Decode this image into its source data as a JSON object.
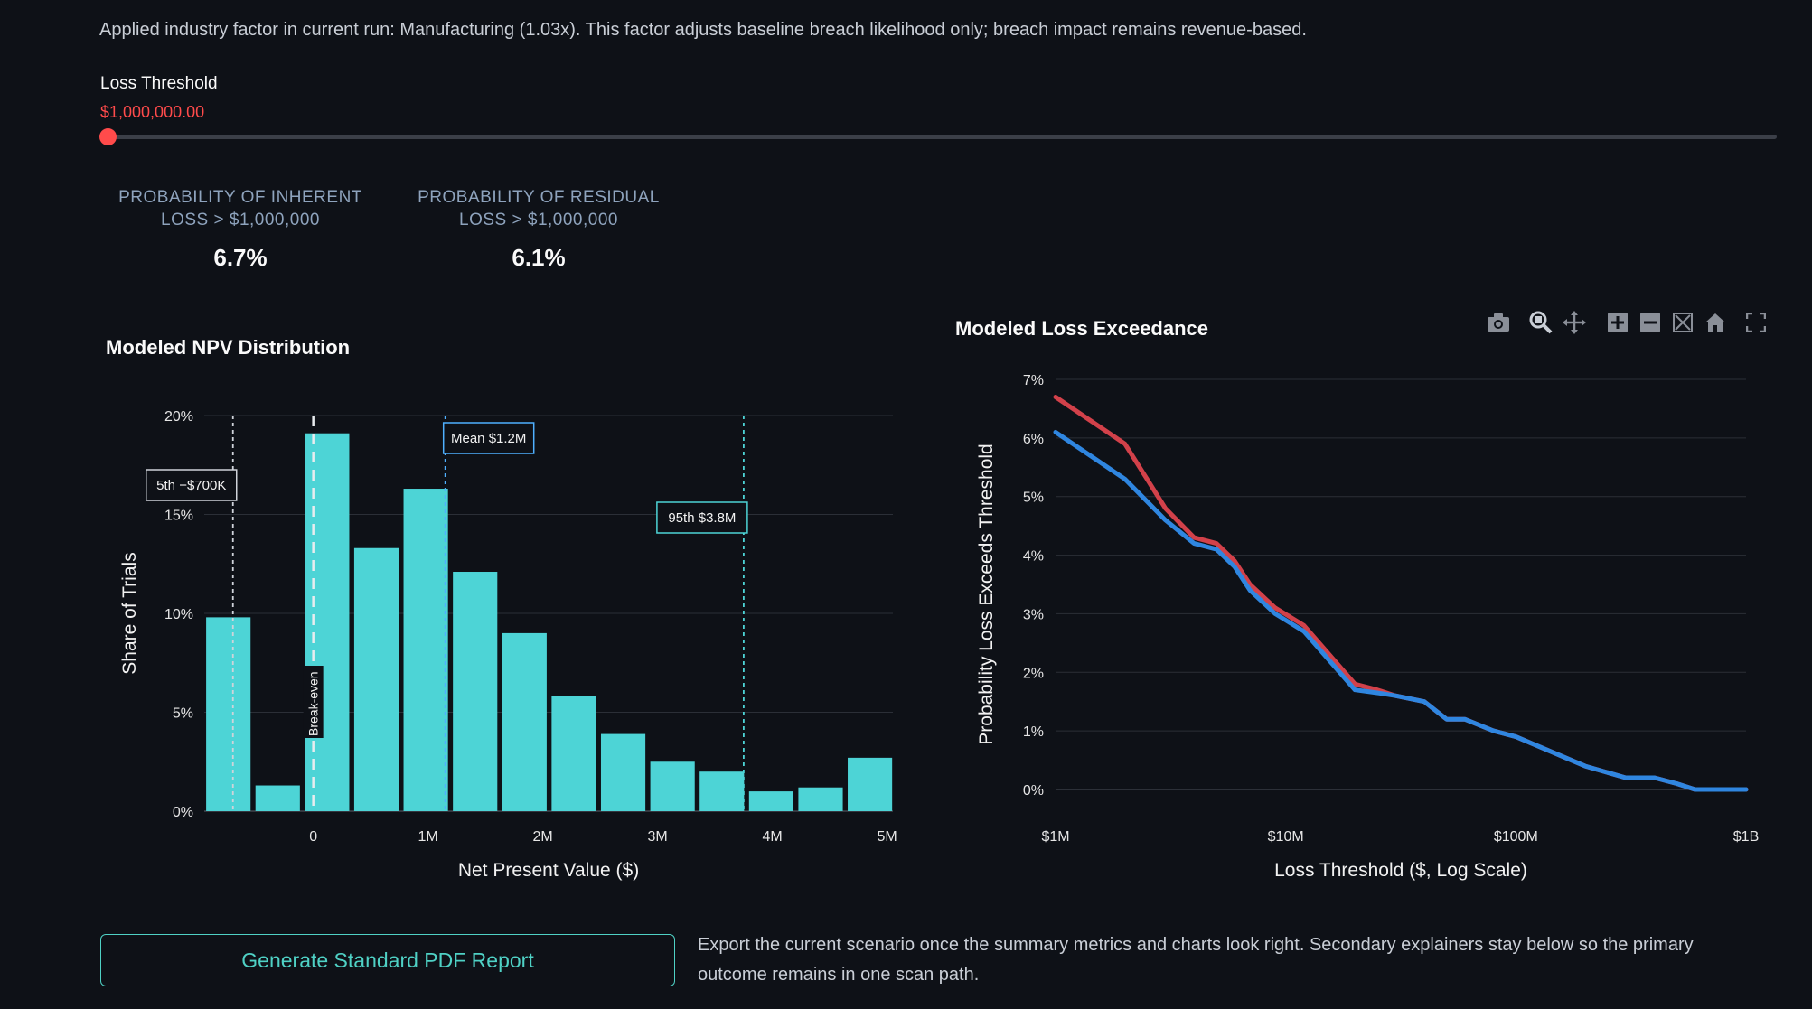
{
  "note": "Applied industry factor in current run: Manufacturing (1.03x). This factor adjusts baseline breach likelihood only; breach impact remains revenue-based.",
  "slider": {
    "label": "Loss Threshold",
    "value_text": "$1,000,000.00",
    "fraction": 0
  },
  "metrics": [
    {
      "label_line1": "PROBABILITY OF INHERENT",
      "label_line2": "LOSS > $1,000,000",
      "value": "6.7%"
    },
    {
      "label_line1": "PROBABILITY OF RESIDUAL",
      "label_line2": "LOSS > $1,000,000",
      "value": "6.1%"
    }
  ],
  "toolbar": {
    "icons": [
      "camera-icon",
      "zoom-icon",
      "pan-icon",
      "zoom-in-icon",
      "zoom-out-icon",
      "autoscale-icon",
      "home-icon",
      "fullscreen-icon"
    ]
  },
  "colors": {
    "bar": "#4dd4d6",
    "inherent": "#d2414a",
    "residual": "#2f86e0",
    "accent": "#ff4b4b"
  },
  "chart_data": [
    {
      "type": "bar",
      "title": "Modeled NPV Distribution",
      "xlabel": "Net Present Value ($)",
      "ylabel": "Share of Trials",
      "x_ticks": [
        {
          "value": 0,
          "label": "0"
        },
        {
          "value": 1000000,
          "label": "1M"
        },
        {
          "value": 2000000,
          "label": "2M"
        },
        {
          "value": 3000000,
          "label": "3M"
        },
        {
          "value": 4000000,
          "label": "4M"
        },
        {
          "value": 5000000,
          "label": "5M"
        }
      ],
      "y_ticks": [
        {
          "value": 0,
          "label": "0%"
        },
        {
          "value": 5,
          "label": "5%"
        },
        {
          "value": 10,
          "label": "10%"
        },
        {
          "value": 15,
          "label": "15%"
        },
        {
          "value": 20,
          "label": "20%"
        }
      ],
      "xlim": [
        -950000,
        5050000
      ],
      "ylim": [
        0,
        20
      ],
      "bin_width": 430000,
      "bins": [
        {
          "x": -740000,
          "value": 9.8
        },
        {
          "x": -310000,
          "value": 1.3
        },
        {
          "x": 120000,
          "value": 19.1
        },
        {
          "x": 550000,
          "value": 13.3
        },
        {
          "x": 980000,
          "value": 16.3
        },
        {
          "x": 1410000,
          "value": 12.1
        },
        {
          "x": 1840000,
          "value": 9.0
        },
        {
          "x": 2270000,
          "value": 5.8
        },
        {
          "x": 2700000,
          "value": 3.9
        },
        {
          "x": 3130000,
          "value": 2.5
        },
        {
          "x": 3560000,
          "value": 2.0
        },
        {
          "x": 3990000,
          "value": 1.0
        },
        {
          "x": 4420000,
          "value": 1.2
        },
        {
          "x": 4850000,
          "value": 2.7
        }
      ],
      "markers": [
        {
          "x": -700000,
          "label": "5th −$700K"
        },
        {
          "x": 0,
          "label": "Break-even"
        },
        {
          "x": 1150000,
          "label": "Mean $1.2M"
        },
        {
          "x": 3750000,
          "label": "95th $3.8M"
        }
      ]
    },
    {
      "type": "line",
      "title": "Modeled Loss Exceedance",
      "xlabel": "Loss Threshold ($, Log Scale)",
      "ylabel": "Probability Loss Exceeds Threshold",
      "x_scale": "log",
      "xlim": [
        1000000,
        1000000000
      ],
      "ylim": [
        0,
        7
      ],
      "x_ticks": [
        {
          "value": 1000000,
          "label": "$1M"
        },
        {
          "value": 10000000,
          "label": "$10M"
        },
        {
          "value": 100000000,
          "label": "$100M"
        },
        {
          "value": 1000000000,
          "label": "$1B"
        }
      ],
      "y_ticks": [
        {
          "value": 0,
          "label": "0%"
        },
        {
          "value": 1,
          "label": "1%"
        },
        {
          "value": 2,
          "label": "2%"
        },
        {
          "value": 3,
          "label": "3%"
        },
        {
          "value": 4,
          "label": "4%"
        },
        {
          "value": 5,
          "label": "5%"
        },
        {
          "value": 6,
          "label": "6%"
        },
        {
          "value": 7,
          "label": "7%"
        }
      ],
      "series": [
        {
          "color": "#d2414a",
          "x": [
            1000000,
            2000000,
            3000000,
            4000000,
            5000000,
            6000000,
            7000000,
            9000000,
            12000000,
            20000000,
            25000000,
            30000000,
            40000000,
            50000000,
            60000000,
            80000000,
            100000000,
            200000000,
            300000000,
            400000000,
            500000000,
            600000000,
            1000000000
          ],
          "y": [
            6.7,
            5.9,
            4.8,
            4.3,
            4.2,
            3.9,
            3.5,
            3.1,
            2.8,
            1.8,
            1.7,
            1.6,
            1.5,
            1.2,
            1.2,
            1.0,
            0.9,
            0.4,
            0.2,
            0.2,
            0.1,
            0.0,
            0.0
          ]
        },
        {
          "color": "#2f86e0",
          "x": [
            1000000,
            2000000,
            3000000,
            4000000,
            5000000,
            6000000,
            7000000,
            9000000,
            12000000,
            20000000,
            25000000,
            30000000,
            40000000,
            50000000,
            60000000,
            80000000,
            100000000,
            200000000,
            300000000,
            400000000,
            500000000,
            600000000,
            1000000000
          ],
          "y": [
            6.1,
            5.3,
            4.6,
            4.2,
            4.1,
            3.8,
            3.4,
            3.0,
            2.7,
            1.7,
            1.65,
            1.6,
            1.5,
            1.2,
            1.2,
            1.0,
            0.9,
            0.4,
            0.2,
            0.2,
            0.1,
            0.0,
            0.0
          ]
        }
      ]
    }
  ],
  "report": {
    "button_label": "Generate Standard PDF Report",
    "note": "Export the current scenario once the summary metrics and charts look right. Secondary explainers stay below so the primary outcome remains in one scan path."
  }
}
